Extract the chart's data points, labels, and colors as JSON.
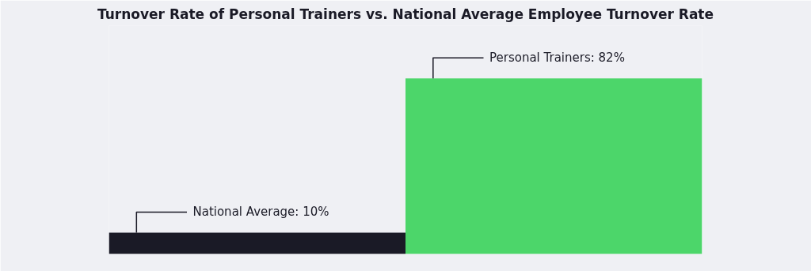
{
  "chart_data": {
    "type": "bar",
    "title": "Turnover Rate of Personal Trainers vs. National Average Employee Turnover Rate",
    "categories": [
      null,
      null
    ],
    "values": [
      10,
      82
    ],
    "colors": [
      "#1a1a26",
      "#4cd66a"
    ],
    "value_labels": [
      "National Average: 10%",
      "Personal Trainers: 82%"
    ],
    "grid": false,
    "tick_labels": false
  }
}
